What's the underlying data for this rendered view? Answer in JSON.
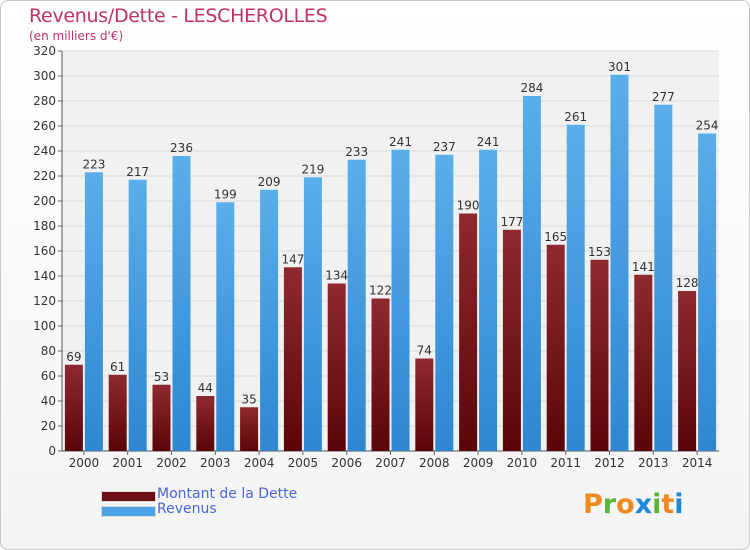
{
  "title": "Revenus/Dette - LESCHEROLLES",
  "subtitle": "(en milliers d'€)",
  "colors": {
    "dette": "#7b1a1f",
    "revenus": "#3b8fd8",
    "title": "#c0326e",
    "legend_text": "#4a67d6"
  },
  "legend": [
    {
      "label": "Montant de la Dette",
      "color": "#6e0f16"
    },
    {
      "label": "Revenus",
      "color": "#4aa3e6"
    }
  ],
  "logo": {
    "letters": [
      "P",
      "r",
      "o",
      "x",
      "i",
      "t",
      "i"
    ],
    "colors": [
      "#f08a1e",
      "#5bb53a",
      "#f08a1e",
      "#1e88d8",
      "#5bb53a",
      "#f08a1e",
      "#1e88d8"
    ]
  },
  "chart_data": {
    "type": "bar",
    "title": "Revenus/Dette - LESCHEROLLES",
    "subtitle": "(en milliers d'€)",
    "categories": [
      "2000",
      "2001",
      "2002",
      "2003",
      "2004",
      "2005",
      "2006",
      "2007",
      "2008",
      "2009",
      "2010",
      "2011",
      "2012",
      "2013",
      "2014"
    ],
    "series": [
      {
        "name": "Montant de la Dette",
        "values": [
          69,
          61,
          53,
          44,
          35,
          147,
          134,
          122,
          74,
          190,
          177,
          165,
          153,
          141,
          128
        ]
      },
      {
        "name": "Revenus",
        "values": [
          223,
          217,
          236,
          199,
          209,
          219,
          233,
          241,
          237,
          241,
          284,
          261,
          301,
          277,
          254
        ]
      }
    ],
    "ylim": [
      0,
      320
    ],
    "yticks": [
      0,
      20,
      40,
      60,
      80,
      100,
      120,
      140,
      160,
      180,
      200,
      220,
      240,
      260,
      280,
      300,
      320
    ],
    "grid": true,
    "legend_position": "bottom-left"
  }
}
